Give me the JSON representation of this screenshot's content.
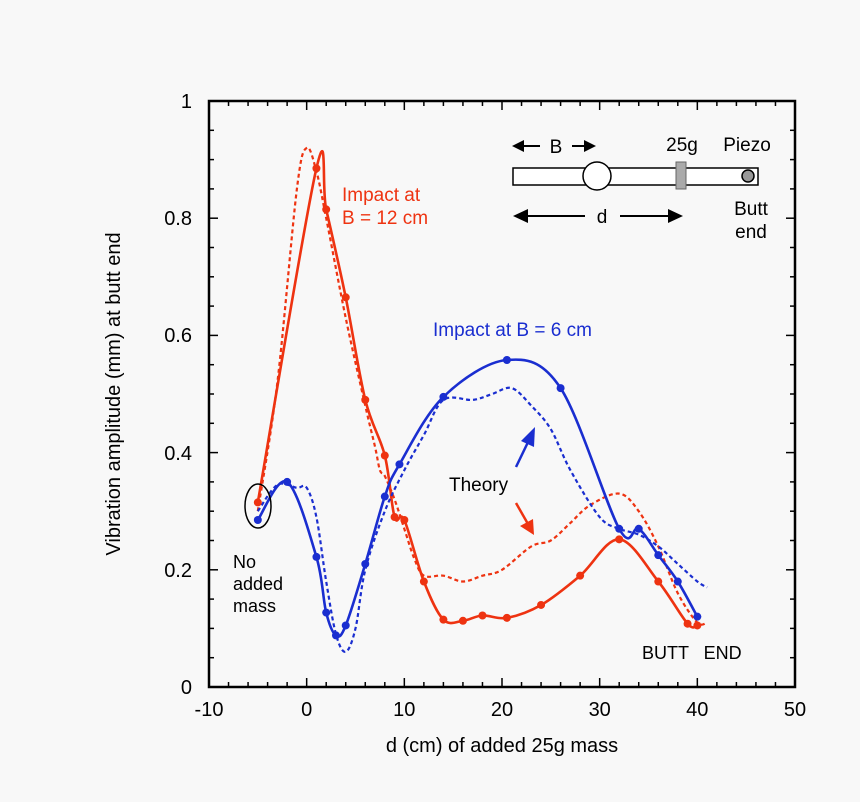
{
  "chart_data": {
    "type": "line",
    "xlabel": "d (cm) of added 25g mass",
    "ylabel": "Vibration amplitude (mm) at butt end",
    "xlim": [
      -10,
      50
    ],
    "ylim": [
      0,
      1
    ],
    "xticks": [
      "-10",
      "0",
      "10",
      "20",
      "30",
      "40",
      "50"
    ],
    "yticks": [
      "0",
      "0.2",
      "0.4",
      "0.6",
      "0.8",
      "1"
    ],
    "colors": {
      "red": "#ee3311",
      "blue": "#1a2ed0",
      "black": "#000000"
    },
    "series": [
      {
        "name": "Impact at B = 12 cm (measured)",
        "color": "#ee3311",
        "dashed": false,
        "markers": true,
        "x": [
          -5,
          1,
          2,
          4,
          6,
          8,
          9,
          10,
          12,
          14,
          16,
          18,
          20.5,
          24,
          28,
          32,
          36,
          39,
          40
        ],
        "y": [
          0.315,
          0.885,
          0.815,
          0.665,
          0.49,
          0.395,
          0.29,
          0.285,
          0.18,
          0.115,
          0.113,
          0.122,
          0.118,
          0.14,
          0.19,
          0.252,
          0.18,
          0.108,
          0.105
        ]
      },
      {
        "name": "Impact at B = 12 cm (theory)",
        "color": "#ee3311",
        "dashed": true,
        "markers": false,
        "x": [
          -5,
          -3,
          -1,
          0,
          1,
          2,
          4,
          6,
          7,
          7.5,
          8,
          9,
          10,
          11,
          12,
          14,
          16,
          18,
          20,
          23,
          25,
          27,
          29,
          32,
          34,
          36,
          38,
          40,
          41
        ],
        "y": [
          0.3,
          0.52,
          0.85,
          0.92,
          0.88,
          0.8,
          0.63,
          0.48,
          0.41,
          0.37,
          0.36,
          0.32,
          0.27,
          0.22,
          0.19,
          0.19,
          0.18,
          0.19,
          0.2,
          0.24,
          0.25,
          0.28,
          0.31,
          0.33,
          0.3,
          0.24,
          0.16,
          0.11,
          0.11
        ]
      },
      {
        "name": "Impact at B = 6 cm (measured)",
        "color": "#1a2ed0",
        "dashed": false,
        "markers": true,
        "x": [
          -5,
          -2,
          1,
          2,
          3,
          4,
          6,
          8,
          9.5,
          14,
          20.5,
          26,
          32,
          34,
          36,
          38,
          40
        ],
        "y": [
          0.285,
          0.35,
          0.222,
          0.127,
          0.088,
          0.105,
          0.21,
          0.325,
          0.38,
          0.495,
          0.558,
          0.51,
          0.27,
          0.27,
          0.225,
          0.18,
          0.12
        ]
      },
      {
        "name": "Impact at B = 6 cm (theory)",
        "color": "#1a2ed0",
        "dashed": true,
        "markers": false,
        "x": [
          -5,
          -3,
          -1,
          0,
          1,
          2,
          3,
          4,
          5,
          6,
          8,
          10,
          12,
          14,
          17,
          19,
          21,
          23,
          25,
          27,
          30,
          32,
          34,
          36,
          38,
          40,
          41
        ],
        "y": [
          0.3,
          0.345,
          0.34,
          0.34,
          0.29,
          0.18,
          0.09,
          0.06,
          0.1,
          0.2,
          0.3,
          0.37,
          0.43,
          0.49,
          0.49,
          0.5,
          0.51,
          0.48,
          0.44,
          0.37,
          0.29,
          0.27,
          0.26,
          0.24,
          0.21,
          0.18,
          0.17
        ]
      }
    ],
    "annotations": {
      "impact_12_line1": "Impact at",
      "impact_12_line2": "B = 12 cm",
      "impact_6": "Impact at B = 6 cm",
      "theory": "Theory",
      "no_added_line1": "No",
      "no_added_line2": "added",
      "no_added_line3": "mass",
      "butt_end_bottom": "BUTT   END",
      "inset_b": "B",
      "inset_25g": "25g",
      "inset_piezo": "Piezo",
      "inset_d": "d",
      "inset_butt": "Butt",
      "inset_end": "end"
    }
  }
}
